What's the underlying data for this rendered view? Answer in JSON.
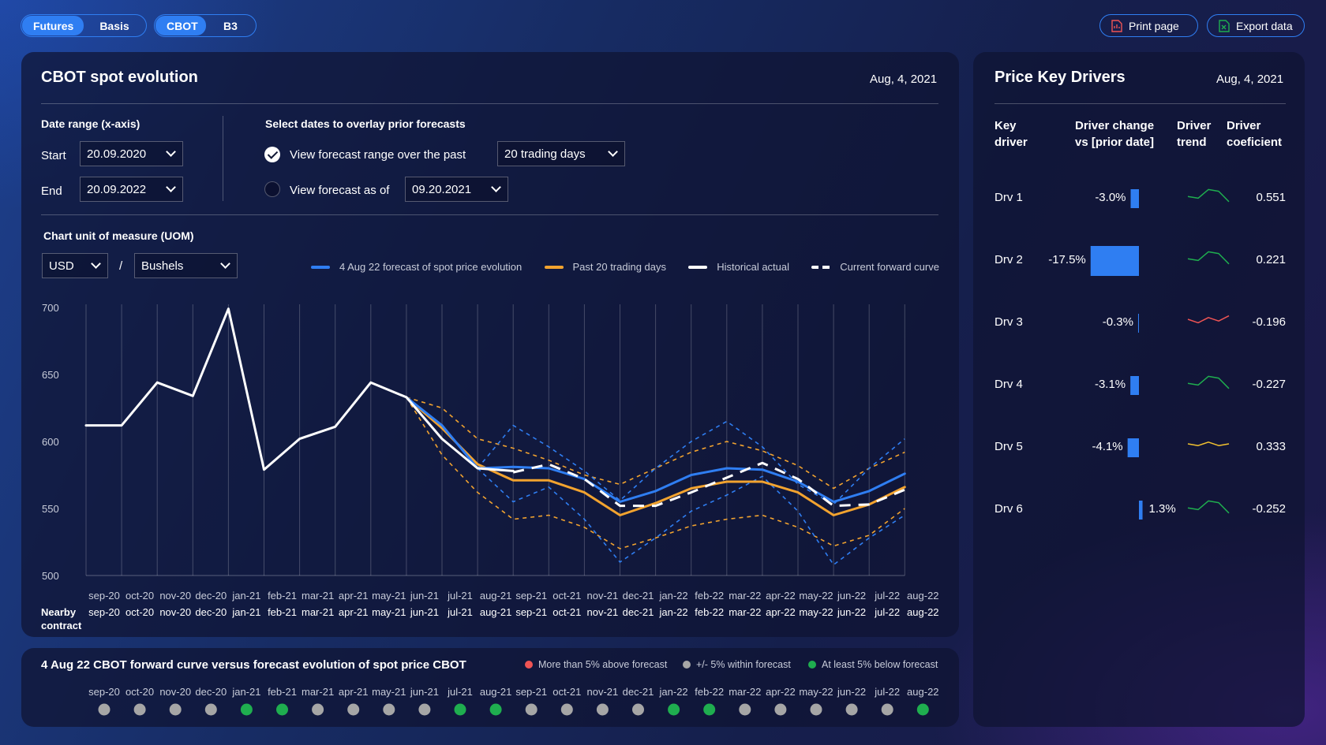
{
  "colors": {
    "accent": "#2f7ef2",
    "forecast": "#2f7ef2",
    "past": "#f2a32f",
    "historical": "#ffffff",
    "above": "#ef5454",
    "within": "#a6a6a6",
    "below": "#1fae4f"
  },
  "toggles": {
    "futures": "Futures",
    "basis": "Basis",
    "cbot": "CBOT",
    "b3": "B3"
  },
  "toolbar": {
    "print": "Print page",
    "export": "Export data",
    "print_icon": "pdf-icon",
    "export_icon": "excel-icon"
  },
  "main": {
    "title": "CBOT spot evolution",
    "date": "Aug, 4, 2021"
  },
  "filters": {
    "date_range_label": "Date range (x-axis)",
    "start_label": "Start",
    "start_value": "20.09.2020",
    "end_label": "End",
    "end_value": "20.09.2022",
    "overlay_label": "Select dates to overlay prior forecasts",
    "opt1": "View forecast range over the past",
    "opt1_value": "20 trading days",
    "opt2": "View forecast as of",
    "opt2_value": "09.20.2021",
    "uom_label": "Chart unit of measure (UOM)",
    "uom_currency": "USD",
    "uom_sep": "/",
    "uom_unit": "Bushels"
  },
  "chart_data": {
    "type": "line",
    "y_ticks": [
      700,
      650,
      600,
      550,
      500
    ],
    "ylim": [
      500,
      700
    ],
    "x": [
      "sep-20",
      "oct-20",
      "nov-20",
      "dec-20",
      "jan-21",
      "feb-21",
      "mar-21",
      "apr-21",
      "may-21",
      "jun-21",
      "jul-21",
      "aug-21",
      "sep-21",
      "oct-21",
      "nov-21",
      "dec-21",
      "jan-22",
      "feb-22",
      "mar-22",
      "apr-22",
      "may-22",
      "jun-22",
      "jul-22",
      "aug-22"
    ],
    "nearby_contract": [
      "sep-20",
      "oct-20",
      "nov-20",
      "dec-20",
      "jan-21",
      "feb-21",
      "mar-21",
      "apr-21",
      "may-21",
      "jun-21",
      "jul-21",
      "aug-21",
      "sep-21",
      "oct-21",
      "nov-21",
      "dec-21",
      "jan-22",
      "feb-22",
      "mar-22",
      "apr-22",
      "may-22",
      "jun-22",
      "jul-22",
      "aug-22"
    ],
    "nearby_label": "Nearby contract",
    "legend": [
      "4 Aug 22 forecast of spot price evolution",
      "Past 20 trading days",
      "Historical actual",
      "Current forward curve"
    ],
    "series": [
      {
        "name": "4 Aug 22 forecast of spot price evolution",
        "style": "solid",
        "color": "#2f7ef2",
        "x": [
          "jun-21",
          "jul-21",
          "aug-21",
          "sep-21",
          "oct-21",
          "nov-21",
          "dec-21",
          "jan-22",
          "feb-22",
          "mar-22",
          "apr-22",
          "may-22",
          "jun-22",
          "jul-22",
          "aug-22"
        ],
        "values": [
          633,
          612,
          580,
          581,
          580,
          572,
          555,
          563,
          575,
          580,
          579,
          570,
          555,
          563,
          576
        ]
      },
      {
        "name": "Past 20 trading days",
        "style": "solid",
        "color": "#f2a32f",
        "x": [
          "jun-21",
          "jul-21",
          "aug-21",
          "sep-21",
          "oct-21",
          "nov-21",
          "dec-21",
          "jan-22",
          "feb-22",
          "mar-22",
          "apr-22",
          "may-22",
          "jun-22",
          "jul-22",
          "aug-22"
        ],
        "values": [
          633,
          610,
          583,
          571,
          571,
          562,
          545,
          554,
          565,
          570,
          570,
          562,
          545,
          553,
          566
        ]
      },
      {
        "name": "Historical actual",
        "style": "solid",
        "color": "#ffffff",
        "x": [
          "sep-20",
          "oct-20",
          "nov-20",
          "dec-20",
          "jan-21",
          "feb-21",
          "mar-21",
          "apr-21",
          "may-21",
          "jun-21",
          "jul-21",
          "aug-21",
          "sep-21"
        ],
        "values": [
          612,
          612,
          644,
          634,
          699,
          579,
          602,
          611,
          644,
          633,
          602,
          580,
          578
        ]
      },
      {
        "name": "Current forward curve",
        "style": "dashed",
        "color": "#ffffff",
        "x": [
          "sep-21",
          "oct-21",
          "nov-21",
          "dec-21",
          "jan-22",
          "feb-22",
          "mar-22",
          "apr-22",
          "may-22",
          "jun-22",
          "jul-22",
          "aug-22"
        ],
        "values": [
          577,
          583,
          572,
          552,
          552,
          562,
          573,
          584,
          572,
          552,
          553,
          564
        ]
      },
      {
        "name": "Past 20 trading days upper",
        "style": "dashed",
        "color": "#f2a32f",
        "x": [
          "jun-21",
          "jul-21",
          "aug-21",
          "sep-21",
          "oct-21",
          "nov-21",
          "dec-21",
          "jan-22",
          "feb-22",
          "mar-22",
          "apr-22",
          "may-22",
          "jun-22",
          "jul-22",
          "aug-22"
        ],
        "values": [
          633,
          625,
          602,
          595,
          586,
          575,
          568,
          580,
          592,
          600,
          593,
          582,
          565,
          580,
          592
        ]
      },
      {
        "name": "Past 20 trading days lower",
        "style": "dashed",
        "color": "#f2a32f",
        "x": [
          "jun-21",
          "jul-21",
          "aug-21",
          "sep-21",
          "oct-21",
          "nov-21",
          "dec-21",
          "jan-22",
          "feb-22",
          "mar-22",
          "apr-22",
          "may-22",
          "jun-22",
          "jul-22",
          "aug-22"
        ],
        "values": [
          633,
          590,
          562,
          542,
          545,
          536,
          520,
          528,
          537,
          542,
          545,
          536,
          522,
          530,
          550
        ]
      },
      {
        "name": "4 Aug 22 forecast upper",
        "style": "dashed",
        "color": "#2f7ef2",
        "x": [
          "aug-21",
          "sep-21",
          "oct-21",
          "nov-21",
          "dec-21",
          "jan-22",
          "feb-22",
          "mar-22",
          "apr-22",
          "may-22",
          "jun-22",
          "jul-22",
          "aug-22"
        ],
        "values": [
          580,
          612,
          596,
          578,
          556,
          580,
          600,
          615,
          596,
          568,
          553,
          580,
          602
        ]
      },
      {
        "name": "4 Aug 22 forecast lower",
        "style": "dashed",
        "color": "#2f7ef2",
        "x": [
          "aug-21",
          "sep-21",
          "oct-21",
          "nov-21",
          "dec-21",
          "jan-22",
          "feb-22",
          "mar-22",
          "apr-22",
          "may-22",
          "jun-22",
          "jul-22",
          "aug-22"
        ],
        "values": [
          580,
          555,
          566,
          542,
          510,
          528,
          548,
          560,
          574,
          548,
          508,
          528,
          545
        ]
      }
    ]
  },
  "drivers": {
    "title": "Price Key Drivers",
    "date": "Aug, 4, 2021",
    "headers": [
      "Key driver",
      "Driver change vs [prior date]",
      "Driver trend",
      "Driver coeficient"
    ],
    "rows": [
      {
        "name": "Drv 1",
        "change": "-3.0%",
        "value": -3.0,
        "trend": "up",
        "trend_color": "#1fae4f",
        "coef": "0.551"
      },
      {
        "name": "Drv 2",
        "change": "-17.5%",
        "value": -17.5,
        "trend": "up",
        "trend_color": "#1fae4f",
        "coef": "0.221"
      },
      {
        "name": "Drv 3",
        "change": "-0.3%",
        "value": -0.3,
        "trend": "down",
        "trend_color": "#ef5454",
        "coef": "-0.196"
      },
      {
        "name": "Drv 4",
        "change": "-3.1%",
        "value": -3.1,
        "trend": "up",
        "trend_color": "#1fae4f",
        "coef": "-0.227"
      },
      {
        "name": "Drv 5",
        "change": "-4.1%",
        "value": -4.1,
        "trend": "flat",
        "trend_color": "#f2c12f",
        "coef": "0.333"
      },
      {
        "name": "Drv 6",
        "change": "1.3%",
        "value": 1.3,
        "trend": "up",
        "trend_color": "#1fae4f",
        "coef": "-0.252"
      }
    ]
  },
  "bottom": {
    "title": "4 Aug 22 CBOT forward curve versus forecast evolution of spot price CBOT",
    "legend": [
      {
        "label": "More than 5% above forecast",
        "color": "#ef5454"
      },
      {
        "label": "+/- 5% within forecast",
        "color": "#a6a6a6"
      },
      {
        "label": "At least 5% below forecast",
        "color": "#1fae4f"
      }
    ],
    "months": [
      "sep-20",
      "oct-20",
      "nov-20",
      "dec-20",
      "jan-21",
      "feb-21",
      "mar-21",
      "apr-21",
      "may-21",
      "jun-21",
      "jul-21",
      "aug-21",
      "sep-21",
      "oct-21",
      "nov-21",
      "dec-21",
      "jan-22",
      "feb-22",
      "mar-22",
      "apr-22",
      "may-22",
      "jun-22",
      "jul-22",
      "aug-22"
    ],
    "status": [
      "within",
      "within",
      "within",
      "within",
      "below",
      "below",
      "within",
      "within",
      "within",
      "within",
      "below",
      "below",
      "within",
      "within",
      "within",
      "within",
      "below",
      "below",
      "within",
      "within",
      "within",
      "within",
      "within",
      "below"
    ]
  }
}
